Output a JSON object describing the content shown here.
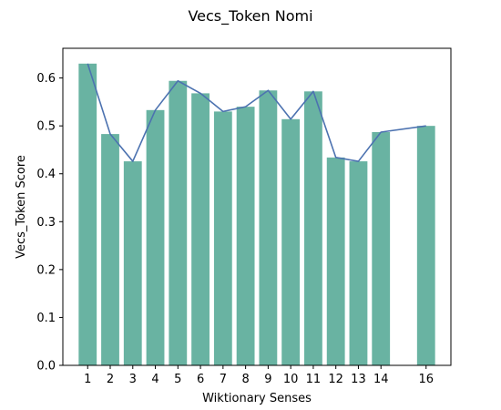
{
  "chart_data": {
    "type": "bar",
    "title": "Vecs_Token Nomi",
    "xlabel": "Wiktionary Senses",
    "ylabel": "Vecs_Token Score",
    "x": [
      1,
      2,
      3,
      4,
      5,
      6,
      7,
      8,
      9,
      10,
      11,
      12,
      13,
      14,
      16
    ],
    "values": [
      0.63,
      0.483,
      0.426,
      0.533,
      0.594,
      0.568,
      0.53,
      0.54,
      0.574,
      0.514,
      0.572,
      0.434,
      0.426,
      0.487,
      0.5
    ],
    "xlim": [
      -0.1,
      17.1
    ],
    "ylim": [
      0,
      0.662
    ],
    "yticks": [
      0.0,
      0.1,
      0.2,
      0.3,
      0.4,
      0.5,
      0.6
    ],
    "ytick_labels": [
      "0.0",
      "0.1",
      "0.2",
      "0.3",
      "0.4",
      "0.5",
      "0.6"
    ],
    "xtick_labels": [
      "1",
      "2",
      "3",
      "4",
      "5",
      "6",
      "7",
      "8",
      "9",
      "10",
      "11",
      "12",
      "13",
      "14",
      "16"
    ],
    "overlay": "line",
    "grid": false,
    "bar_color": "#69b3a2",
    "line_color": "#4c72b0"
  }
}
